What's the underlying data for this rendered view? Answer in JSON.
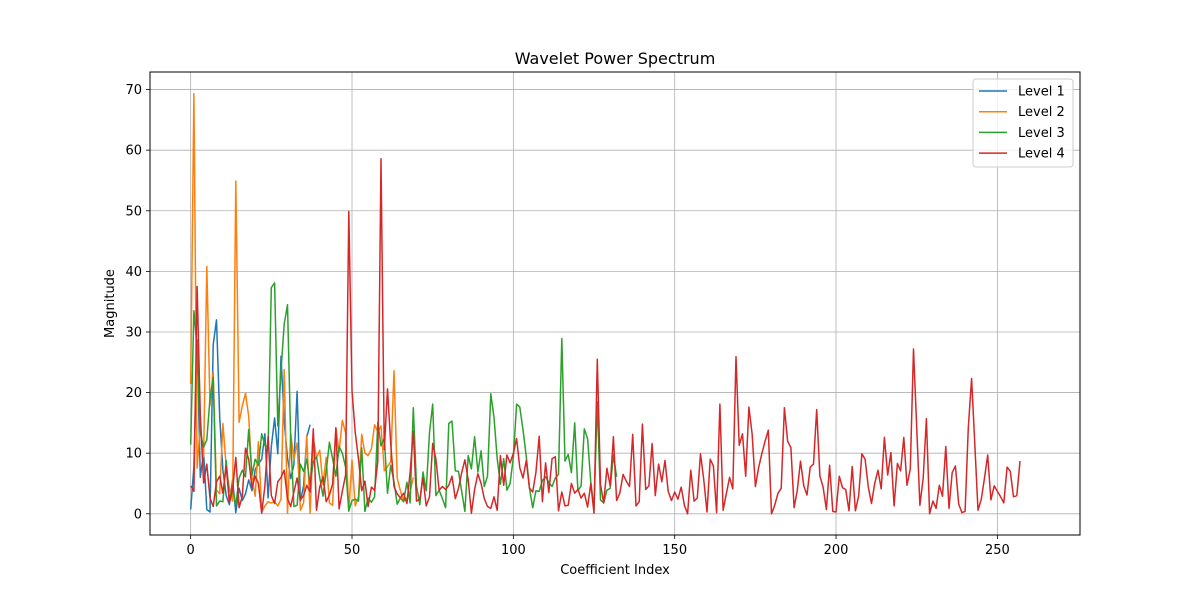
{
  "chart_data": {
    "type": "line",
    "title": "Wavelet Power Spectrum",
    "xlabel": "Coefficient Index",
    "ylabel": "Magnitude",
    "xlim": [
      -12.6,
      275.6
    ],
    "ylim": [
      -3.5,
      72.9
    ],
    "xticks": [
      0,
      50,
      100,
      150,
      200,
      250
    ],
    "yticks": [
      0,
      10,
      20,
      30,
      40,
      50,
      60,
      70
    ],
    "grid": true,
    "legend_position": "top-right",
    "series": [
      {
        "name": "Level 1",
        "color": "#1f77b4",
        "values": [
          0.7,
          7.8,
          28.7,
          6.0,
          10.1,
          0.7,
          0.3,
          27.9,
          32.0,
          16.0,
          7.2,
          3.0,
          1.5,
          5.6,
          0.2,
          4.2,
          2.2,
          3.3,
          5.6,
          3.8,
          7.3,
          8.2,
          9.0,
          13.2,
          2.6,
          11.0,
          15.8,
          9.9,
          26.0,
          15.3,
          9.2,
          5.8,
          8.1,
          20.2,
          2.1,
          4.6,
          12.7,
          14.7
        ]
      },
      {
        "name": "Level 2",
        "color": "#ff7f0e",
        "values": [
          21.4,
          69.3,
          7.5,
          14.7,
          9.4,
          40.8,
          17.9,
          23.4,
          3.9,
          3.3,
          14.9,
          7.7,
          4.2,
          2.1,
          54.9,
          15.1,
          17.8,
          19.9,
          16.1,
          6.1,
          2.9,
          11.9,
          0.3,
          1.3,
          2.0,
          1.8,
          2.0,
          1.3,
          2.4,
          23.8,
          0.1,
          13.3,
          9.0,
          11.7,
          0.6,
          1.8,
          12.8,
          0.1,
          12.5,
          9.2,
          10.5,
          4.8,
          9.3,
          1.8,
          1.4,
          14.1,
          10.2,
          15.4,
          13.4,
          0.4,
          8.9,
          1.3,
          2.8,
          13.1,
          10.0,
          9.6,
          10.7,
          14.7,
          13.5,
          14.5,
          7.1,
          7.8,
          8.6,
          23.6,
          5.9,
          3.8,
          2.1,
          2.5,
          3.7,
          6.0
        ]
      },
      {
        "name": "Level 3",
        "color": "#2ca02c",
        "values": [
          11.4,
          33.5,
          27.4,
          13.4,
          11.0,
          12.2,
          19.0,
          22.5,
          1.3,
          2.1,
          2.0,
          8.8,
          2.3,
          4.3,
          1.4,
          5.9,
          7.2,
          6.1,
          13.9,
          6.4,
          9.0,
          8.0,
          13.2,
          11.3,
          11.0,
          37.3,
          38.1,
          14.5,
          23.6,
          31.3,
          34.5,
          12.3,
          1.2,
          1.4,
          8.2,
          7.0,
          9.0,
          4.8,
          8.6,
          9.4,
          6.0,
          2.9,
          7.0,
          11.8,
          9.1,
          6.2,
          11.1,
          10.0,
          7.7,
          0.5,
          2.2,
          2.4,
          2.1,
          10.9,
          0.4,
          2.6,
          1.9,
          2.8,
          15.1,
          11.2,
          12.5,
          3.4,
          8.0,
          5.3,
          1.6,
          2.6,
          2.0,
          5.2,
          1.8,
          17.5,
          4.6,
          1.5,
          6.9,
          3.8,
          13.4,
          18.1,
          3.0,
          3.9,
          2.5,
          1.0,
          14.9,
          15.3,
          7.1,
          7.0,
          3.7,
          0.4,
          9.6,
          7.4,
          12.7,
          6.9,
          10.4,
          4.5,
          6.2,
          19.8,
          15.9,
          9.1,
          4.9,
          9.1,
          3.9,
          5.0,
          9.4,
          18.1,
          17.6,
          13.9,
          9.4,
          4.2,
          1.0,
          3.8,
          3.7,
          5.5,
          6.1,
          5.2,
          4.5,
          5.9,
          6.5,
          28.9,
          8.7,
          9.8,
          6.8,
          15.0,
          3.8,
          4.6,
          14.0,
          12.4,
          5.2,
          0.9,
          18.5,
          2.3,
          1.8,
          3.9,
          4.2,
          9.7,
          6.1
        ]
      },
      {
        "name": "Level 4",
        "color": "#d62728",
        "values": [
          4.6,
          3.7,
          37.5,
          16.4,
          5.1,
          8.2,
          2.6,
          1.2,
          5.3,
          6.2,
          3.4,
          7.9,
          1.8,
          4.0,
          9.3,
          1.0,
          2.9,
          10.8,
          9.0,
          4.3,
          6.2,
          5.0,
          0.1,
          4.6,
          12.8,
          3.0,
          1.7,
          5.3,
          6.0,
          7.2,
          2.5,
          1.2,
          3.6,
          5.9,
          2.3,
          3.0,
          4.7,
          3.6,
          14.0,
          0.6,
          4.4,
          6.1,
          2.0,
          3.1,
          4.9,
          14.2,
          0.8,
          3.7,
          6.4,
          49.9,
          20.3,
          13.5,
          9.0,
          3.8,
          5.4,
          1.2,
          4.4,
          3.9,
          8.7,
          58.6,
          10.6,
          20.6,
          11.6,
          4.5,
          3.3,
          2.6,
          3.4,
          1.7,
          6.8,
          13.6,
          2.1,
          2.4,
          5.9,
          1.3,
          2.8,
          11.6,
          9.0,
          3.9,
          4.5,
          4.0,
          4.7,
          6.2,
          2.5,
          4.2,
          6.8,
          8.9,
          5.6,
          0.1,
          4.0,
          6.6,
          5.0,
          2.5,
          1.2,
          0.9,
          2.8,
          0.6,
          9.6,
          4.7,
          9.7,
          8.4,
          10.0,
          12.4,
          7.6,
          5.9,
          8.8,
          4.2,
          3.6,
          6.8,
          12.8,
          2.0,
          8.4,
          3.5,
          9.1,
          9.4,
          0.5,
          3.6,
          1.3,
          1.4,
          5.0,
          3.4,
          4.0,
          2.6,
          3.4,
          1.1,
          5.0,
          0.1,
          25.5,
          4.8,
          1.8,
          7.5,
          4.6,
          12.7,
          2.2,
          3.4,
          6.5,
          5.4,
          4.5,
          13.1,
          1.3,
          2.0,
          14.8,
          4.0,
          4.6,
          11.6,
          3.0,
          8.2,
          5.3,
          8.8,
          3.7,
          2.2,
          3.6,
          2.4,
          4.4,
          1.4,
          0.0,
          7.2,
          2.1,
          2.6,
          9.9,
          5.7,
          0.3,
          9.0,
          7.9,
          0.2,
          18.1,
          0.6,
          3.3,
          6.0,
          4.1,
          25.9,
          11.3,
          13.2,
          6.2,
          17.6,
          13.2,
          4.5,
          7.6,
          9.9,
          12.0,
          13.8,
          0.0,
          1.4,
          3.4,
          4.2,
          17.5,
          12.0,
          10.9,
          1.0,
          3.9,
          8.7,
          4.6,
          3.1,
          7.7,
          8.2,
          17.2,
          6.2,
          4.4,
          0.7,
          8.0,
          0.4,
          0.3,
          6.2,
          4.3,
          4.0,
          0.5,
          7.8,
          0.5,
          2.9,
          9.9,
          9.0,
          4.4,
          1.7,
          5.1,
          7.2,
          4.1,
          12.6,
          6.4,
          10.1,
          1.3,
          8.3,
          7.1,
          12.6,
          4.7,
          7.4,
          27.2,
          14.3,
          1.4,
          5.9,
          15.7,
          0.0,
          2.1,
          0.9,
          4.7,
          2.9,
          11.1,
          0.9,
          6.8,
          7.9,
          1.6,
          0.2,
          0.4,
          14.2,
          22.3,
          11.5,
          0.6,
          2.4,
          5.9,
          9.7,
          2.3,
          4.6,
          3.7,
          2.8,
          1.8,
          7.7,
          7.0,
          2.8,
          3.0,
          8.7
        ]
      }
    ]
  }
}
